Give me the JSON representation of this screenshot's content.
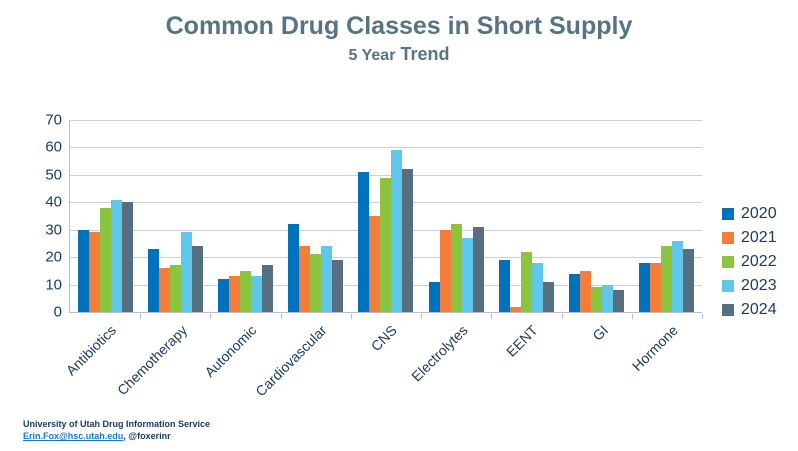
{
  "header": {
    "title": "Common Drug Classes in Short Supply",
    "subtitle_light": "5 Year",
    "subtitle_bold": "Trend"
  },
  "colors": {
    "title_text": "#567481",
    "axis_text": "#1b3c61",
    "gridline": "#ccd1d8",
    "axis_line": "#b9c0c9",
    "link": "#1779c4"
  },
  "chart_data": {
    "type": "bar",
    "title": "Common Drug Classes in Short Supply",
    "subtitle": "5 Year Trend",
    "categories": [
      "Antibiotics",
      "Chemotherapy",
      "Autonomic",
      "Cardiovascular",
      "CNS",
      "Electrolytes",
      "EENT",
      "GI",
      "Hormone"
    ],
    "series": [
      {
        "name": "2020",
        "color": "#0072bc",
        "values": [
          30,
          23,
          12,
          32,
          51,
          11,
          19,
          14,
          18
        ]
      },
      {
        "name": "2021",
        "color": "#f47d3a",
        "values": [
          29,
          16,
          13,
          24,
          35,
          30,
          2,
          15,
          18
        ]
      },
      {
        "name": "2022",
        "color": "#8bc540",
        "values": [
          38,
          17,
          15,
          21,
          49,
          32,
          22,
          9,
          24
        ]
      },
      {
        "name": "2023",
        "color": "#5fc8ea",
        "values": [
          41,
          29,
          13,
          24,
          59,
          27,
          18,
          10,
          26
        ]
      },
      {
        "name": "2024",
        "color": "#566f80",
        "values": [
          40,
          24,
          17,
          19,
          52,
          31,
          11,
          8,
          23
        ]
      }
    ],
    "ylim": [
      0,
      70
    ],
    "yticks": [
      0,
      10,
      20,
      30,
      40,
      50,
      60,
      70
    ],
    "grid": true,
    "legend_position": "right",
    "xlabel": "",
    "ylabel": ""
  },
  "footer": {
    "org": "University of Utah Drug Information Service",
    "email": "Erin.Fox@hsc.utah.edu",
    "handle_suffix": ", @foxerinr"
  }
}
